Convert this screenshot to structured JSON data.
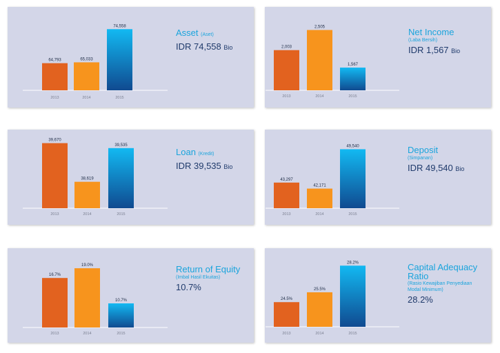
{
  "colors": {
    "bar_2013": "#e2621f",
    "bar_2014": "#f7941d",
    "bar_2015_top": "#12b9f2",
    "bar_2015_bottom": "#104a90",
    "title": "#1aa4dc",
    "value": "#1f3a6b",
    "panel_bg": "#d3d6e8"
  },
  "panels": [
    {
      "title": "Asset",
      "title_small": "(Aset)",
      "subtitle": "",
      "value_prefix": "IDR 74,558",
      "value_unit": "Bio"
    },
    {
      "title": "Net Income",
      "title_small": "",
      "subtitle": "(Laba Bersih)",
      "value_prefix": "IDR 1,567",
      "value_unit": "Bio"
    },
    {
      "title": "Loan",
      "title_small": "(Kredit)",
      "subtitle": "",
      "value_prefix": "IDR 39,535",
      "value_unit": "Bio"
    },
    {
      "title": "Deposit",
      "title_small": "",
      "subtitle": "(Simpanan)",
      "value_prefix": "IDR 49,540",
      "value_unit": "Bio"
    },
    {
      "title": "Return of Equity",
      "title_small": "",
      "subtitle": "(Imbal Hasil Ekuitas)",
      "value_prefix": "10.7%",
      "value_unit": ""
    },
    {
      "title": "Capital Adequacy Ratio",
      "title_small": "",
      "subtitle": "(Rasio Kewajiban Penyediaan Modal Minimum)",
      "value_prefix": "28.2%",
      "value_unit": ""
    }
  ],
  "chart_data": [
    {
      "type": "bar",
      "categories": [
        "2013",
        "2014",
        "2015"
      ],
      "values": [
        64793,
        65033,
        74558
      ],
      "labels": [
        "64,793",
        "65,033",
        "74,558"
      ],
      "ylim": [
        57000,
        76000
      ]
    },
    {
      "type": "bar",
      "categories": [
        "2013",
        "2014",
        "2015"
      ],
      "values": [
        2003,
        2505,
        1567
      ],
      "labels": [
        "2,003",
        "2,505",
        "1,567"
      ],
      "ylim": [
        1000,
        2600
      ]
    },
    {
      "type": "bar",
      "categories": [
        "2013",
        "2014",
        "2015"
      ],
      "values": [
        39670,
        38619,
        39535
      ],
      "labels": [
        "39,670",
        "38,619",
        "39,535"
      ],
      "ylim": [
        37900,
        39700
      ]
    },
    {
      "type": "bar",
      "categories": [
        "2013",
        "2014",
        "2015"
      ],
      "values": [
        43297,
        42171,
        49540
      ],
      "labels": [
        "43,297",
        "42,171",
        "49,540"
      ],
      "ylim": [
        38500,
        50500
      ]
    },
    {
      "type": "bar",
      "categories": [
        "2013",
        "2014",
        "2015"
      ],
      "values": [
        16.7,
        19.0,
        10.7
      ],
      "labels": [
        "16.7%",
        "19.0%",
        "10.7%"
      ],
      "ylim": [
        5,
        19.5
      ]
    },
    {
      "type": "bar",
      "categories": [
        "2013",
        "2014",
        "2015"
      ],
      "values": [
        24.5,
        25.5,
        28.2
      ],
      "labels": [
        "24.5%",
        "25.5%",
        "28.2%"
      ],
      "ylim": [
        22,
        28.5
      ]
    }
  ]
}
